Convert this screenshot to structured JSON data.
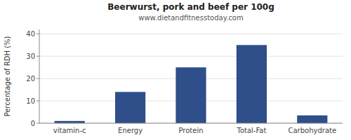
{
  "chart_data": {
    "type": "bar",
    "title": "Beerwurst, pork and beef per 100g",
    "subtitle": "www.dietandfitnesstoday.com",
    "categories": [
      "vitamin-c",
      "Energy",
      "Protein",
      "Total-Fat",
      "Carbohydrate"
    ],
    "values": [
      1,
      14,
      25,
      35,
      3.5
    ],
    "color": "#2e4f8a",
    "ylabel": "Percentage of RDH (%)",
    "ylim": [
      0,
      42
    ],
    "yticks": [
      0,
      10,
      20,
      30,
      40
    ],
    "grid": true
  }
}
